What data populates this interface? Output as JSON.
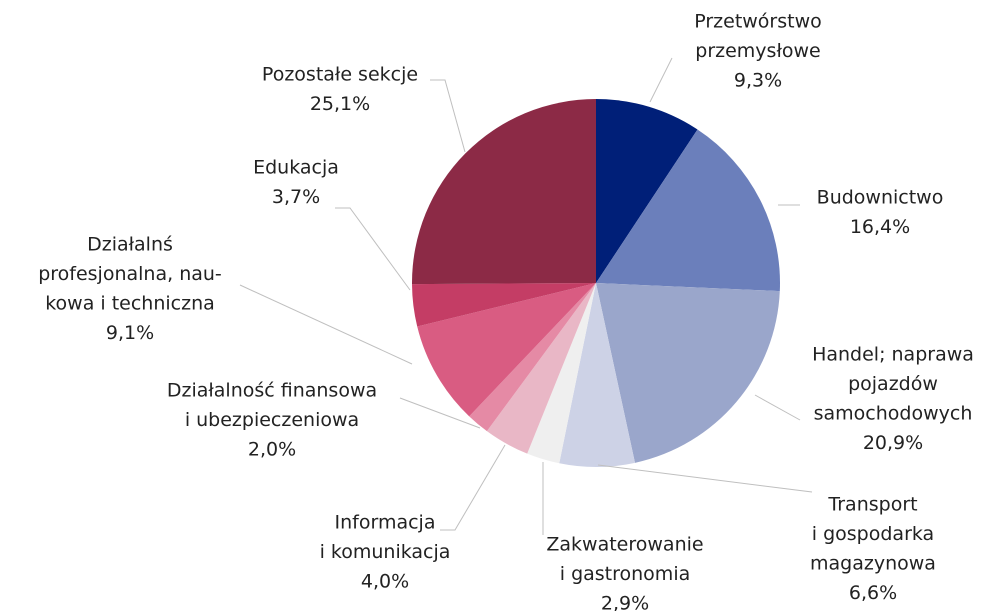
{
  "chart_data": {
    "type": "pie",
    "categories": [
      [
        "Przetwórstwo",
        "przemysłowe"
      ],
      [
        "Budownictwo"
      ],
      [
        "Handel; naprawa",
        "pojazdów",
        "samochodowych"
      ],
      [
        "Transport",
        "i gospodarka",
        "magazynowa"
      ],
      [
        "Zakwaterowanie",
        "i gastronomia"
      ],
      [
        "Informacja",
        "i komunikacja"
      ],
      [
        "Działalność finansowa",
        "i ubezpieczeniowa"
      ],
      [
        "Działalnś",
        "profesjonalna, nau-",
        "kowa i techniczna"
      ],
      [
        "Edukacja"
      ],
      [
        "Pozostałe sekcje"
      ]
    ],
    "values": [
      9.3,
      16.4,
      20.9,
      6.6,
      2.9,
      4.0,
      2.0,
      9.1,
      3.7,
      25.1
    ],
    "value_labels": [
      "9,3%",
      "16,4%",
      "20,9%",
      "6,6%",
      "2,9%",
      "4,0%",
      "2,0%",
      "9,1%",
      "3,7%",
      "25,1%"
    ],
    "colors": [
      "#001f78",
      "#6b7fbb",
      "#9aa6cb",
      "#cdd2e6",
      "#efefef",
      "#e9b7c6",
      "#e58aa5",
      "#d95c82",
      "#c43d65",
      "#8c2a46"
    ]
  }
}
